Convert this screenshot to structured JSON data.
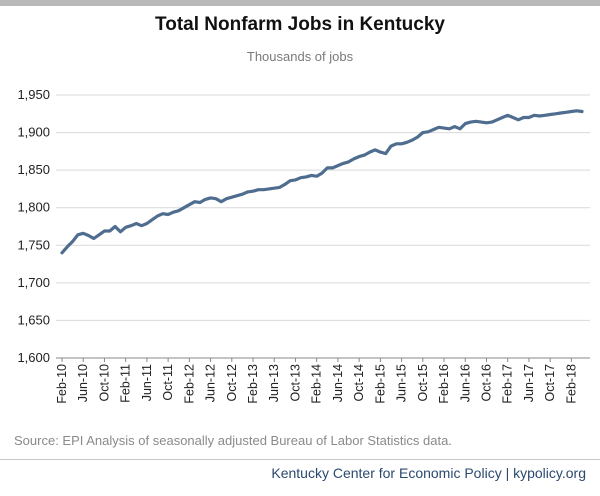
{
  "chart_data": {
    "type": "line",
    "title": "Total Nonfarm Jobs in Kentucky",
    "subtitle": "Thousands of jobs",
    "ylim": [
      1600,
      1950
    ],
    "yticks": [
      1600,
      1650,
      1700,
      1750,
      1800,
      1850,
      1900,
      1950
    ],
    "ytick_labels": [
      "1,600",
      "1,650",
      "1,700",
      "1,750",
      "1,800",
      "1,850",
      "1,900",
      "1,950"
    ],
    "xtick_labels": [
      "Feb-10",
      "Jun-10",
      "Oct-10",
      "Feb-11",
      "Jun-11",
      "Oct-11",
      "Feb-12",
      "Jun-12",
      "Oct-12",
      "Feb-13",
      "Jun-13",
      "Oct-13",
      "Feb-14",
      "Jun-14",
      "Oct-14",
      "Feb-15",
      "Jun-15",
      "Oct-15",
      "Feb-16",
      "Jun-16",
      "Oct-16",
      "Feb-17",
      "Jun-17",
      "Oct-17",
      "Feb-18"
    ],
    "x_start": "Feb-10",
    "x_end": "Apr-18",
    "series": [
      {
        "color": "#4f6d8f",
        "values": [
          1740,
          1748,
          1755,
          1764,
          1766,
          1763,
          1759,
          1764,
          1769,
          1769,
          1775,
          1768,
          1774,
          1776,
          1779,
          1776,
          1779,
          1784,
          1789,
          1792,
          1791,
          1794,
          1796,
          1800,
          1804,
          1808,
          1807,
          1811,
          1813,
          1812,
          1808,
          1812,
          1814,
          1816,
          1818,
          1821,
          1822,
          1824,
          1824,
          1825,
          1826,
          1827,
          1831,
          1836,
          1837,
          1840,
          1841,
          1843,
          1842,
          1846,
          1853,
          1853,
          1856,
          1859,
          1861,
          1865,
          1868,
          1870,
          1874,
          1877,
          1874,
          1872,
          1882,
          1885,
          1885,
          1887,
          1890,
          1894,
          1900,
          1901,
          1904,
          1907,
          1906,
          1905,
          1908,
          1905,
          1912,
          1914,
          1915,
          1914,
          1913,
          1914,
          1917,
          1920,
          1923,
          1920,
          1917,
          1920,
          1920,
          1923,
          1922,
          1923,
          1924,
          1925,
          1926,
          1927,
          1928,
          1929,
          1928
        ]
      }
    ],
    "grid": "horizontal"
  },
  "source": "Source: EPI Analysis of seasonally adjusted Bureau of Labor Statistics data.",
  "footer": "Kentucky Center for Economic Policy | kypolicy.org"
}
